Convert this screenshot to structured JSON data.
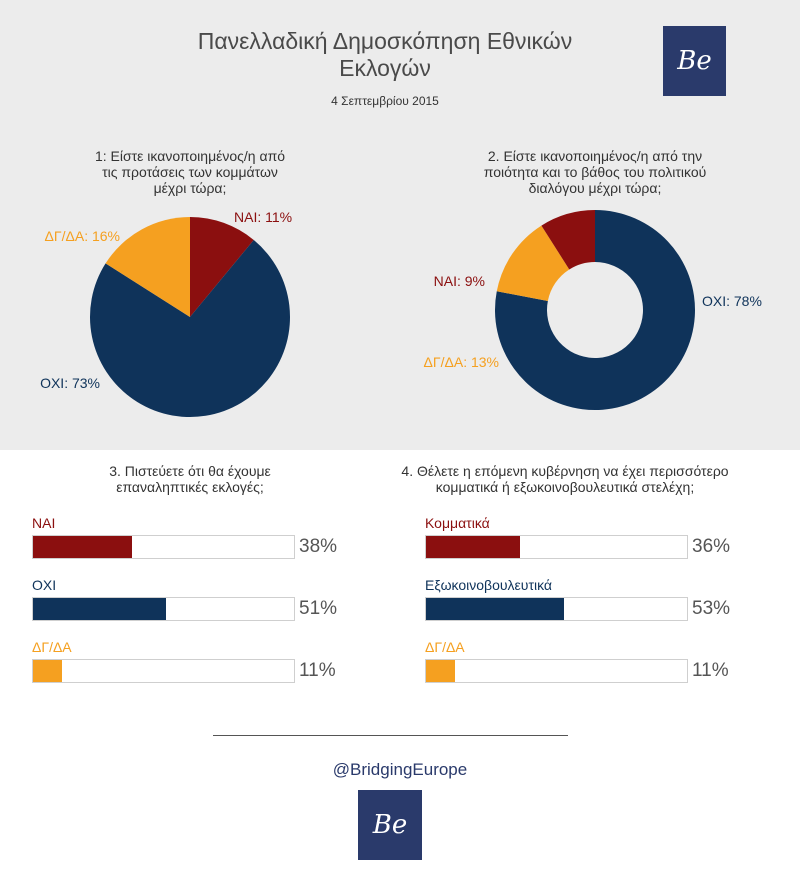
{
  "header": {
    "title_line1": "Πανελλαδική Δημοσκόπηση Εθνικών",
    "title_line2": "Εκλογών",
    "date": "4 Σεπτεμβρίου 2015",
    "logo_text": "Be"
  },
  "colors": {
    "yes": "#8b0f0f",
    "no": "#0f335a",
    "undecided": "#f5a020",
    "panel": "#ececec"
  },
  "chart_data": [
    {
      "type": "pie",
      "title_lines": [
        "1: Είστε ικανοποιημένος/η από",
        "τις προτάσεις των κομμάτων",
        "μέχρι τώρα;"
      ],
      "slices": [
        {
          "label": "ΝΑΙ",
          "value": 11,
          "display": "ΝΑΙ: 11%",
          "color": "#8b0f0f"
        },
        {
          "label": "ΟΧΙ",
          "value": 73,
          "display": "ΟΧΙ: 73%",
          "color": "#0f335a"
        },
        {
          "label": "ΔΓ/ΔΑ",
          "value": 16,
          "display": "ΔΓ/ΔΑ: 16%",
          "color": "#f5a020"
        }
      ]
    },
    {
      "type": "donut",
      "title_lines": [
        "2. Είστε ικανοποιημένος/η από την",
        "ποιότητα και το βάθος του πολιτικού",
        "διαλόγου μέχρι τώρα;"
      ],
      "slices": [
        {
          "label": "ΟΧΙ",
          "value": 78,
          "display": "ΟΧΙ: 78%",
          "color": "#0f335a"
        },
        {
          "label": "ΔΓ/ΔΑ",
          "value": 13,
          "display": "ΔΓ/ΔΑ: 13%",
          "color": "#f5a020"
        },
        {
          "label": "ΝΑΙ",
          "value": 9,
          "display": "ΝΑΙ: 9%",
          "color": "#8b0f0f"
        }
      ]
    },
    {
      "type": "bar",
      "orientation": "horizontal",
      "title_lines": [
        "3. Πιστεύετε ότι θα έχουμε",
        "επαναληπτικές εκλογές;"
      ],
      "categories": [
        "ΝΑΙ",
        "ΟΧΙ",
        "ΔΓ/ΔΑ"
      ],
      "values": [
        38,
        51,
        11
      ],
      "value_labels": [
        "38%",
        "51%",
        "11%"
      ],
      "colors": [
        "#8b0f0f",
        "#0f335a",
        "#f5a020"
      ],
      "xlim": [
        0,
        100
      ]
    },
    {
      "type": "bar",
      "orientation": "horizontal",
      "title_lines": [
        "4. Θέλετε η επόμενη κυβέρνηση να έχει περισσότερο",
        "κομματικά ή εξωκοινοβουλευτικά στελέχη;"
      ],
      "categories": [
        "Κομματικά",
        "Εξωκοινοβουλευτικά",
        "ΔΓ/ΔΑ"
      ],
      "values": [
        36,
        53,
        11
      ],
      "value_labels": [
        "36%",
        "53%",
        "11%"
      ],
      "colors": [
        "#8b0f0f",
        "#0f335a",
        "#f5a020"
      ],
      "xlim": [
        0,
        100
      ]
    }
  ],
  "footer": {
    "handle": "@BridgingEurope",
    "logo_text": "Be"
  }
}
